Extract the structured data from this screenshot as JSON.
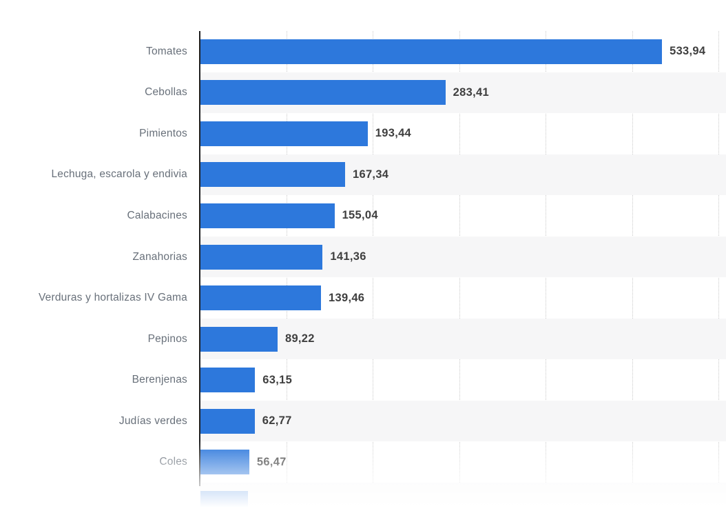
{
  "chart_data": {
    "type": "bar",
    "orientation": "horizontal",
    "title": "",
    "xlabel": "",
    "ylabel": "",
    "legend": "none",
    "grid": "vertical-dotted",
    "categories": [
      "Tomates",
      "Cebollas",
      "Pimientos",
      "Lechuga, escarola y endivia",
      "Calabacines",
      "Zanahorias",
      "Verduras y hortalizas IV Gama",
      "Pepinos",
      "Berenjenas",
      "Judías verdes",
      "Coles"
    ],
    "values": [
      533.94,
      283.41,
      193.44,
      167.34,
      155.04,
      141.36,
      139.46,
      89.22,
      63.15,
      62.77,
      56.47
    ],
    "value_labels": [
      "533,94",
      "283,41",
      "193,44",
      "167,34",
      "155,04",
      "141,36",
      "139,46",
      "89,22",
      "63,15",
      "62,77",
      "56,47"
    ],
    "xlim": [
      0,
      609
    ],
    "gridlines": [
      100,
      200,
      300,
      400,
      500,
      600
    ],
    "partial_bar_at_bottom": {
      "visible": true,
      "approx_value": 55
    },
    "colors": {
      "bar": "#2d78dc",
      "zebra_band": "#f6f6f7",
      "gridline": "#c9c9c9",
      "axis": "#1f1f1f",
      "category_label": "#68707a",
      "value_label": "#3f3f3f",
      "background": "#ffffff"
    }
  }
}
